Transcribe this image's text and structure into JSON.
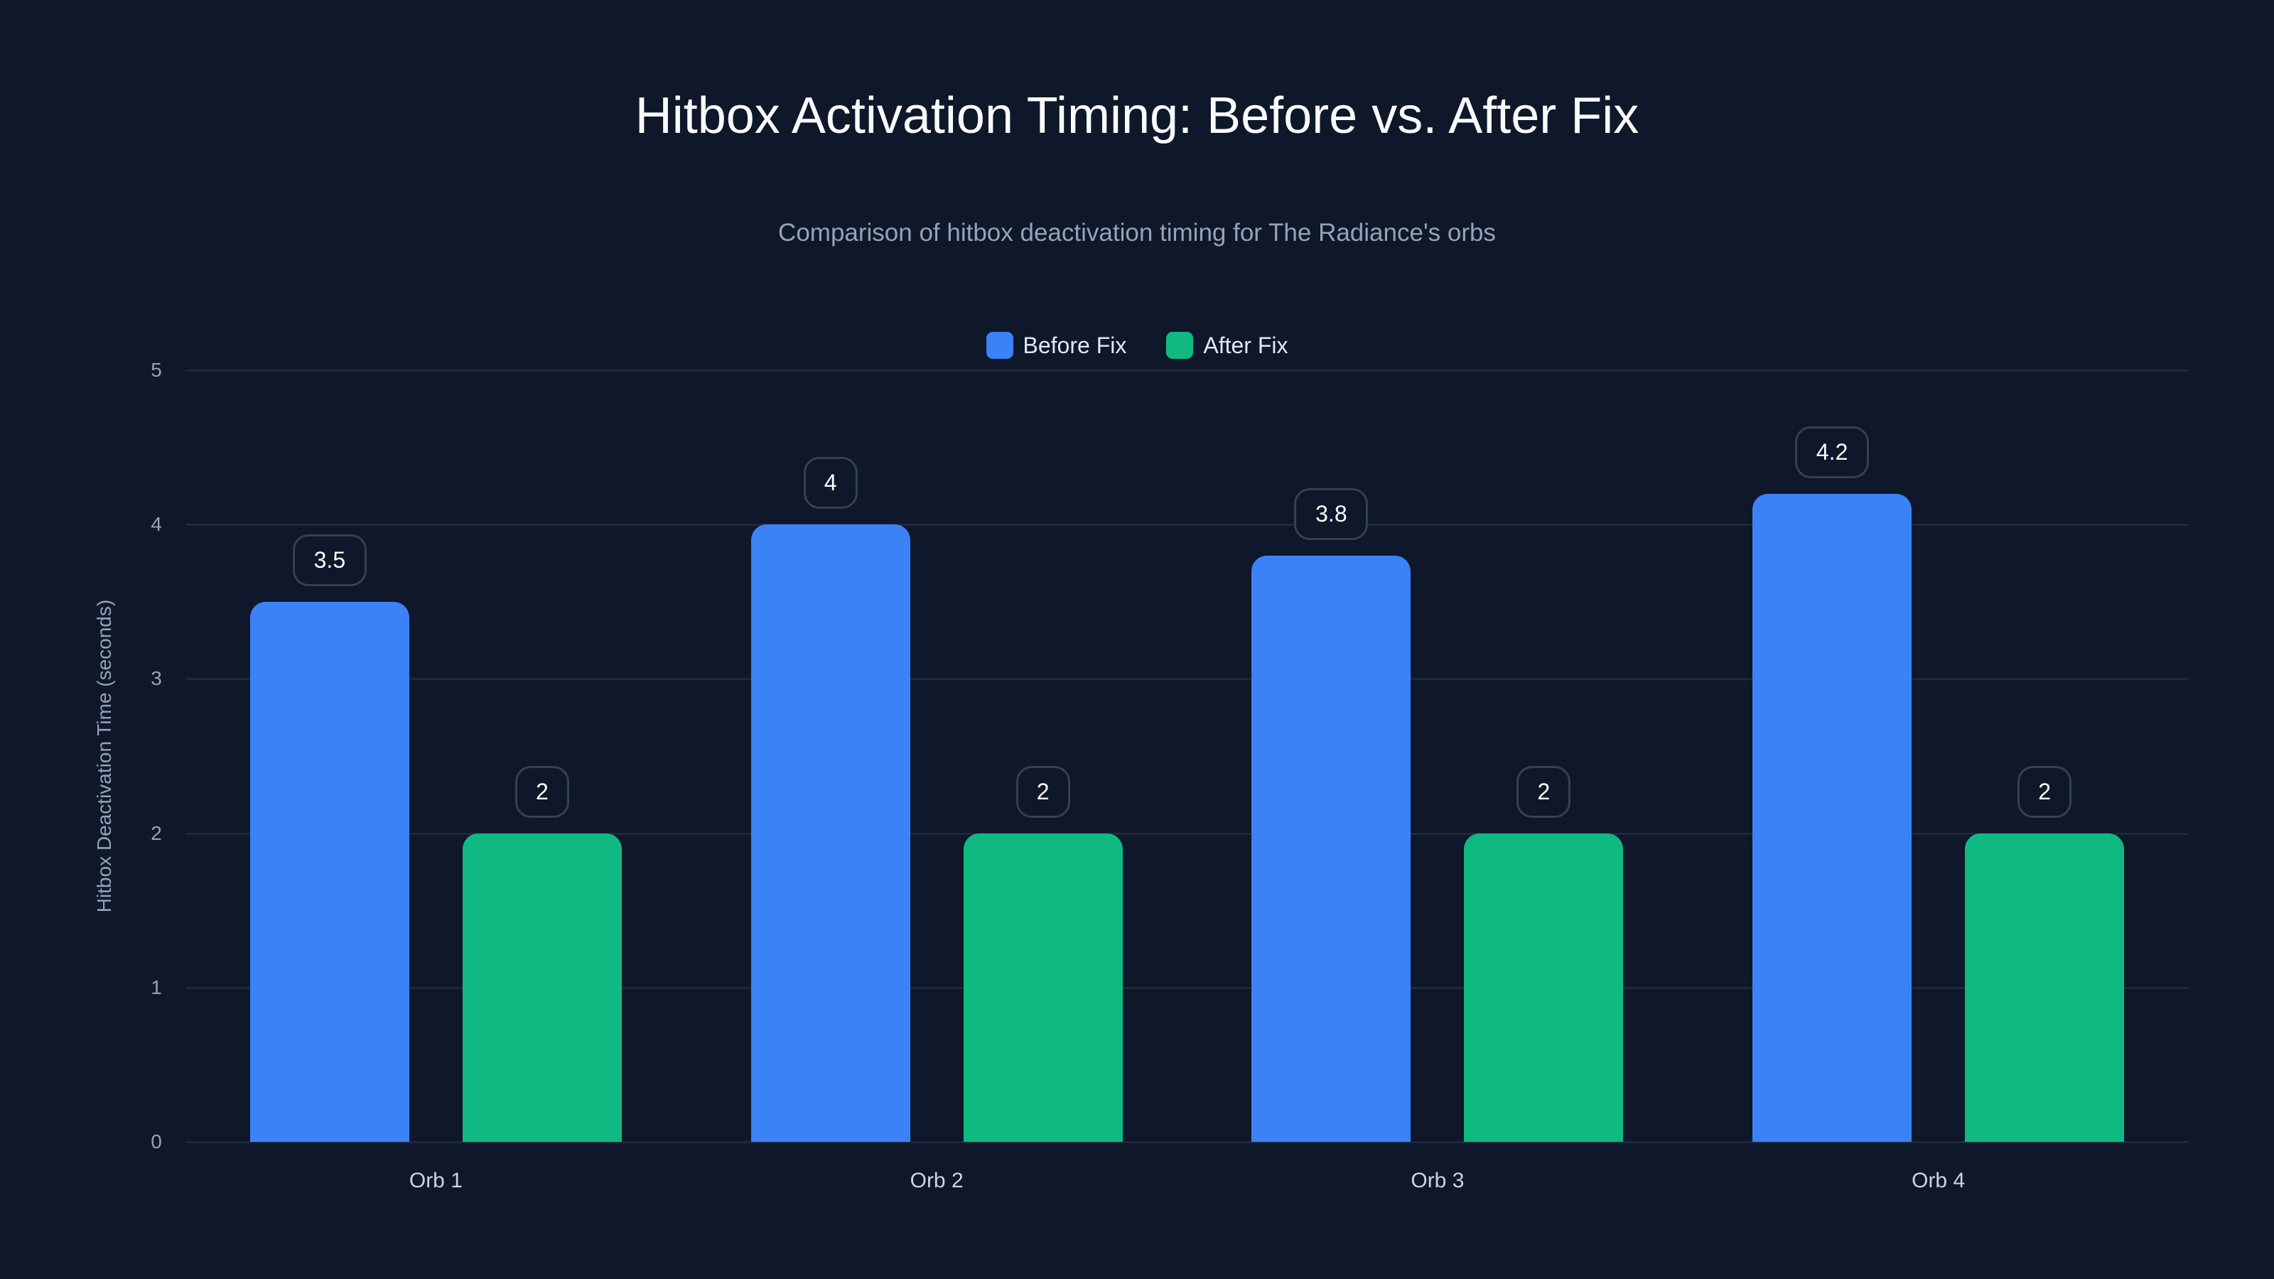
{
  "title": "Hitbox Activation Timing: Before vs. After Fix",
  "subtitle": "Comparison of hitbox deactivation timing for The Radiance's orbs",
  "legend": [
    {
      "label": "Before Fix",
      "color": "#3b82f6"
    },
    {
      "label": "After Fix",
      "color": "#10b981"
    }
  ],
  "colors": {
    "background": "#0f172a",
    "before": "#3b82f6",
    "after": "#10b981",
    "grid": "#1e293b",
    "label_border": "#334155"
  },
  "y_axis": {
    "label": "Hitbox Deactivation Time (seconds)",
    "ticks": [
      "0",
      "1",
      "2",
      "3",
      "4",
      "5"
    ]
  },
  "x_axis": {
    "ticks": [
      "Orb 1",
      "Orb 2",
      "Orb 3",
      "Orb 4"
    ]
  },
  "chart_data": {
    "type": "bar",
    "title": "Hitbox Activation Timing: Before vs. After Fix",
    "subtitle": "Comparison of hitbox deactivation timing for The Radiance's orbs",
    "categories": [
      "Orb 1",
      "Orb 2",
      "Orb 3",
      "Orb 4"
    ],
    "series": [
      {
        "name": "Before Fix",
        "color": "#3b82f6",
        "values": [
          3.5,
          4,
          3.8,
          4.2
        ]
      },
      {
        "name": "After Fix",
        "color": "#10b981",
        "values": [
          2,
          2,
          2,
          2
        ]
      }
    ],
    "xlabel": "",
    "ylabel": "Hitbox Deactivation Time (seconds)",
    "ylim": [
      0,
      5
    ],
    "yticks": [
      0,
      1,
      2,
      3,
      4,
      5
    ],
    "grid": true,
    "legend_position": "top-center",
    "data_labels": true
  }
}
